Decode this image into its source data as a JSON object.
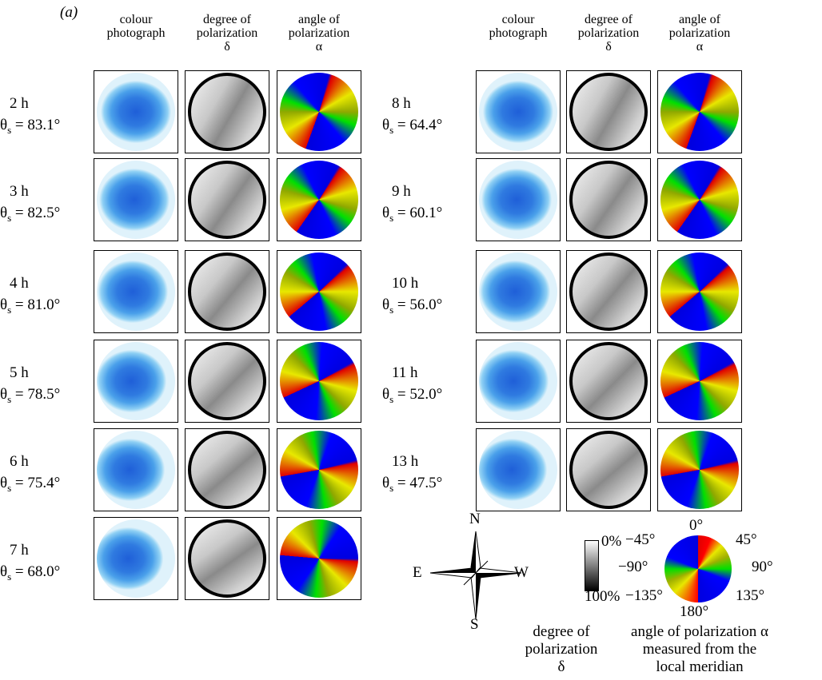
{
  "panel_label": "(a)",
  "headers": [
    [
      "colour",
      "photograph"
    ],
    [
      "degree of",
      "polarization",
      "δ"
    ],
    [
      "angle of",
      "polarization",
      "α"
    ]
  ],
  "zenith_symbol": "θ",
  "zenith_subscript": "s",
  "rows_left": [
    {
      "time": "2 h",
      "angle": " = 83.1°"
    },
    {
      "time": "3 h",
      "angle": " = 82.5°"
    },
    {
      "time": "4 h",
      "angle": " = 81.0°"
    },
    {
      "time": "5 h",
      "angle": " = 78.5°"
    },
    {
      "time": "6 h",
      "angle": " = 75.4°"
    },
    {
      "time": "7 h",
      "angle": " = 68.0°"
    }
  ],
  "rows_right": [
    {
      "time": "8 h",
      "angle": " = 64.4°"
    },
    {
      "time": "9 h",
      "angle": " = 60.1°"
    },
    {
      "time": "10 h",
      "angle": " = 56.0°"
    },
    {
      "time": "11 h",
      "angle": " = 52.0°"
    },
    {
      "time": "13 h",
      "angle": " = 47.5°"
    }
  ],
  "compass": {
    "north": "N",
    "south": "S",
    "east": "E",
    "west": "W"
  },
  "dop_scale": {
    "top": "0%",
    "bottom": "100%",
    "caption": [
      "degree of",
      "polarization",
      "δ"
    ]
  },
  "aop_wheel": {
    "labels": [
      "0°",
      "45°",
      "90°",
      "135°",
      "180°",
      "−135°",
      "−90°",
      "−45°"
    ],
    "caption": [
      "angle of polarization α",
      "measured from the",
      "local meridian"
    ]
  }
}
